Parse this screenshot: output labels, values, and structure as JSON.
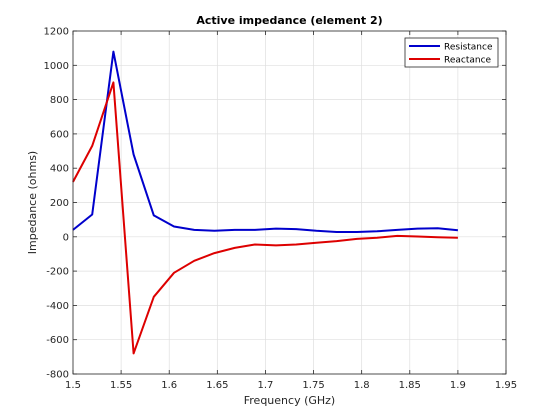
{
  "chart_data": {
    "type": "line",
    "title": "Active impedance (element 2)",
    "xlabel": "Frequency (GHz)",
    "ylabel": "Impedance (ohms)",
    "xlim": [
      1.5,
      1.95
    ],
    "ylim": [
      -800,
      1200
    ],
    "xticks": [
      "1.5",
      "1.55",
      "1.6",
      "1.65",
      "1.7",
      "1.75",
      "1.8",
      "1.85",
      "1.9",
      "1.95"
    ],
    "yticks": [
      "-800",
      "-600",
      "-400",
      "-200",
      "0",
      "200",
      "400",
      "600",
      "800",
      "1000",
      "1200"
    ],
    "grid": true,
    "legend_position": "top-right",
    "series": [
      {
        "name": "Resistance",
        "color": "#0000cc",
        "x": [
          1.5,
          1.52,
          1.542,
          1.563,
          1.584,
          1.605,
          1.626,
          1.647,
          1.668,
          1.689,
          1.711,
          1.732,
          1.753,
          1.774,
          1.795,
          1.816,
          1.837,
          1.858,
          1.879,
          1.9
        ],
        "y": [
          40,
          130,
          1080,
          480,
          125,
          60,
          40,
          35,
          40,
          40,
          48,
          45,
          35,
          28,
          28,
          32,
          40,
          48,
          50,
          38
        ]
      },
      {
        "name": "Reactance",
        "color": "#dd0000",
        "x": [
          1.5,
          1.52,
          1.542,
          1.563,
          1.584,
          1.605,
          1.626,
          1.647,
          1.668,
          1.689,
          1.711,
          1.732,
          1.753,
          1.774,
          1.795,
          1.816,
          1.837,
          1.858,
          1.879,
          1.9
        ],
        "y": [
          320,
          530,
          900,
          -680,
          -350,
          -210,
          -140,
          -95,
          -65,
          -45,
          -50,
          -45,
          -35,
          -25,
          -12,
          -5,
          5,
          2,
          -3,
          -5
        ]
      }
    ]
  }
}
